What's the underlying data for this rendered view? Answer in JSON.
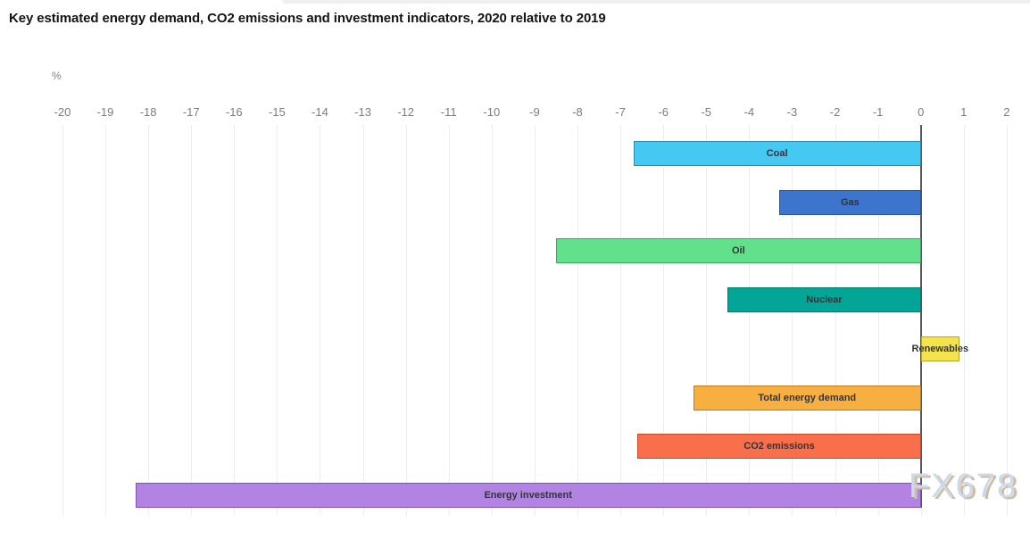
{
  "title": "Key estimated energy demand, CO2 emissions and investment indicators, 2020 relative to 2019",
  "watermark": "FX678",
  "chart_data": {
    "type": "bar",
    "orientation": "horizontal",
    "title": "Key estimated energy demand, CO2 emissions and investment indicators, 2020 relative to 2019",
    "xlabel": "%",
    "ylabel": "",
    "categories": [
      "Coal",
      "Gas",
      "Oil",
      "Nuclear",
      "Renewables",
      "Total energy demand",
      "CO2 emissions",
      "Energy investment"
    ],
    "values": [
      -6.7,
      -3.3,
      -8.5,
      -4.5,
      0.9,
      -5.3,
      -6.6,
      -18.3
    ],
    "bar_fill_colors": [
      "#45c8f2",
      "#3d74cd",
      "#62e08c",
      "#03a596",
      "#f4e44c",
      "#f8af41",
      "#f96f4c",
      "#b283e2"
    ],
    "bar_border_colors": [
      "#2f88ad",
      "#29519c",
      "#35a95e",
      "#02776c",
      "#b5a52d",
      "#bd7d1e",
      "#bd4d28",
      "#7b55a9"
    ],
    "xticks": [
      -20,
      -19,
      -18,
      -17,
      -16,
      -15,
      -14,
      -13,
      -12,
      -11,
      -10,
      -9,
      -8,
      -7,
      -6,
      -5,
      -4,
      -3,
      -2,
      -1,
      0,
      1,
      2
    ],
    "xlim": [
      -20.04,
      2.46
    ],
    "grid": true,
    "legend": "none",
    "zero_line_color": "#57585c",
    "grid_color": "#ededee"
  }
}
